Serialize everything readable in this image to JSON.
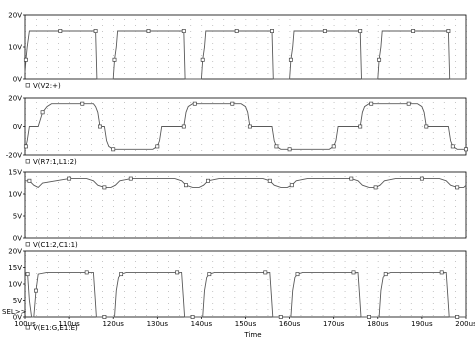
{
  "chart_data": [
    {
      "type": "line",
      "trace_label": "V(V2:+)",
      "y_ticks": [
        "20V",
        "10V",
        "0V"
      ],
      "ylim": [
        0,
        20
      ],
      "xlim": [
        100,
        200
      ],
      "grid": "dotted",
      "series": [
        {
          "name": "V(V2:+)",
          "x": [
            100,
            100.2,
            100.5,
            101,
            105,
            108,
            110,
            113,
            115.5,
            116,
            116.3,
            118,
            120,
            120.3,
            120.7,
            121,
            125,
            128,
            130,
            133,
            135.5,
            136,
            136.3,
            138,
            140,
            140.3,
            140.7,
            141,
            145,
            148,
            150,
            153,
            155.5,
            156,
            156.3,
            158,
            160,
            160.3,
            160.7,
            161,
            165,
            168,
            170,
            173,
            175.5,
            176,
            176.3,
            178,
            180,
            180.3,
            180.7,
            181,
            185,
            188,
            190,
            193,
            195.5,
            196,
            196.3,
            198,
            200
          ],
          "y": [
            2,
            6,
            10,
            15,
            15,
            15,
            15,
            15,
            15,
            15,
            0,
            0,
            0,
            6,
            10,
            15,
            15,
            15,
            15,
            15,
            15,
            15,
            0,
            0,
            0,
            6,
            10,
            15,
            15,
            15,
            15,
            15,
            15,
            15,
            0,
            0,
            0,
            6,
            10,
            15,
            15,
            15,
            15,
            15,
            15,
            15,
            0,
            0,
            0,
            6,
            10,
            15,
            15,
            15,
            15,
            15,
            15,
            15,
            0,
            0,
            0
          ]
        }
      ]
    },
    {
      "type": "line",
      "trace_label": "V(R7:1,L1:2)",
      "y_ticks": [
        "20V",
        "0V",
        "-20V"
      ],
      "ylim": [
        -20,
        20
      ],
      "xlim": [
        100,
        200
      ],
      "grid": "dotted",
      "series": [
        {
          "name": "V(R7:1,L1:2)",
          "x": [
            100,
            100.2,
            100.5,
            101,
            103,
            104,
            105,
            106,
            110,
            113,
            115.5,
            116,
            116.5,
            117,
            118,
            118.5,
            119,
            120,
            124,
            127,
            129,
            130,
            130.5,
            131,
            133,
            136,
            136.5,
            137,
            138,
            138.5,
            139,
            140,
            144,
            147,
            149,
            150,
            150.5,
            151,
            153,
            156,
            156.5,
            157,
            158,
            158.5,
            159,
            160,
            164,
            167,
            169,
            170,
            170.5,
            171,
            173,
            176,
            176.5,
            177,
            178,
            178.5,
            179,
            180,
            184,
            187,
            189,
            190,
            190.5,
            191,
            193,
            196,
            196.5,
            197,
            198,
            198.5,
            199,
            200
          ],
          "y": [
            -16,
            -14,
            -10,
            0,
            0,
            10,
            14,
            16,
            16,
            16,
            16,
            14,
            10,
            0,
            0,
            -10,
            -14,
            -16,
            -16,
            -16,
            -16,
            -14,
            -10,
            0,
            0,
            0,
            10,
            14,
            16,
            16,
            16,
            16,
            16,
            16,
            16,
            14,
            10,
            0,
            0,
            0,
            -10,
            -14,
            -16,
            -16,
            -16,
            -16,
            -16,
            -16,
            -16,
            -14,
            -10,
            0,
            0,
            0,
            10,
            14,
            16,
            16,
            16,
            16,
            16,
            16,
            16,
            14,
            10,
            0,
            0,
            0,
            -10,
            -14,
            -16,
            -16,
            -16,
            -16
          ]
        }
      ]
    },
    {
      "type": "line",
      "trace_label": "V(C1:2,C1:1)",
      "y_ticks": [
        "15V",
        "10V",
        "5V",
        "0V"
      ],
      "ylim": [
        0,
        15
      ],
      "xlim": [
        100,
        200
      ],
      "grid": "dotted",
      "series": [
        {
          "name": "V(C1:2,C1:1)",
          "x": [
            100,
            101,
            102,
            103,
            104,
            110,
            114,
            115.5,
            116.5,
            118,
            119.5,
            120.5,
            121.5,
            124,
            130,
            134,
            135.5,
            136.5,
            138,
            139.5,
            140.5,
            141.5,
            144,
            150,
            154,
            155.5,
            156.5,
            158,
            159.5,
            160.5,
            161.5,
            164,
            170,
            174,
            175.5,
            176.5,
            178,
            179.5,
            180.5,
            181.5,
            184,
            190,
            194,
            195.5,
            196.5,
            198,
            199.5,
            200
          ],
          "y": [
            13,
            13,
            12,
            11.5,
            12.5,
            13.5,
            13.5,
            13,
            12,
            11.5,
            11.5,
            12,
            13,
            13.5,
            13.5,
            13.5,
            13,
            12,
            11.5,
            11.5,
            12,
            13,
            13.5,
            13.5,
            13.5,
            13,
            12,
            11.5,
            11.5,
            12,
            13,
            13.5,
            13.5,
            13.5,
            13,
            12,
            11.5,
            11.5,
            12,
            13,
            13.5,
            13.5,
            13.5,
            13,
            12,
            11.5,
            11.5,
            12
          ]
        }
      ]
    },
    {
      "type": "line",
      "trace_label": "V(E1:G,E1:E)",
      "y_ticks": [
        "20V",
        "15V",
        "10V",
        "5V",
        "0V"
      ],
      "sel_marker": "SEL>>",
      "ylim": [
        0,
        20
      ],
      "xlim": [
        100,
        200
      ],
      "grid": "dotted",
      "x_ticks": [
        "100us",
        "110us",
        "120us",
        "130us",
        "140us",
        "150us",
        "160us",
        "170us",
        "180us",
        "190us",
        "200us"
      ],
      "xlabel": "Time",
      "series": [
        {
          "name": "V(E1:G,E1:E)",
          "x": [
            100,
            100.6,
            101,
            101.5,
            102,
            102.5,
            103,
            105,
            110,
            114,
            115.5,
            115.9,
            116.2,
            118,
            120.3,
            120.7,
            121.2,
            121.8,
            123,
            125,
            130,
            134.5,
            135.5,
            135.9,
            136.2,
            138,
            140.3,
            140.7,
            141.2,
            141.8,
            143,
            145,
            150,
            154.5,
            155.5,
            155.9,
            156.2,
            158,
            160.3,
            160.7,
            161.2,
            161.8,
            163,
            165,
            170,
            174.5,
            175.5,
            175.9,
            176.2,
            178,
            180.3,
            180.7,
            181.2,
            181.8,
            183,
            185,
            190,
            194.5,
            195.5,
            195.9,
            196.2,
            198,
            200
          ],
          "y": [
            13,
            13,
            5,
            0,
            0,
            8,
            13,
            13.5,
            13.5,
            13.5,
            13.5,
            6,
            0,
            0,
            0,
            8,
            12,
            13,
            13.5,
            13.5,
            13.5,
            13.5,
            13.5,
            6,
            0,
            0,
            0,
            8,
            12,
            13,
            13.5,
            13.5,
            13.5,
            13.5,
            13.5,
            6,
            0,
            0,
            0,
            8,
            12,
            13,
            13.5,
            13.5,
            13.5,
            13.5,
            13.5,
            6,
            0,
            0,
            0,
            8,
            12,
            13,
            13.5,
            13.5,
            13.5,
            13.5,
            13.5,
            6,
            0,
            0,
            0
          ]
        }
      ]
    }
  ]
}
